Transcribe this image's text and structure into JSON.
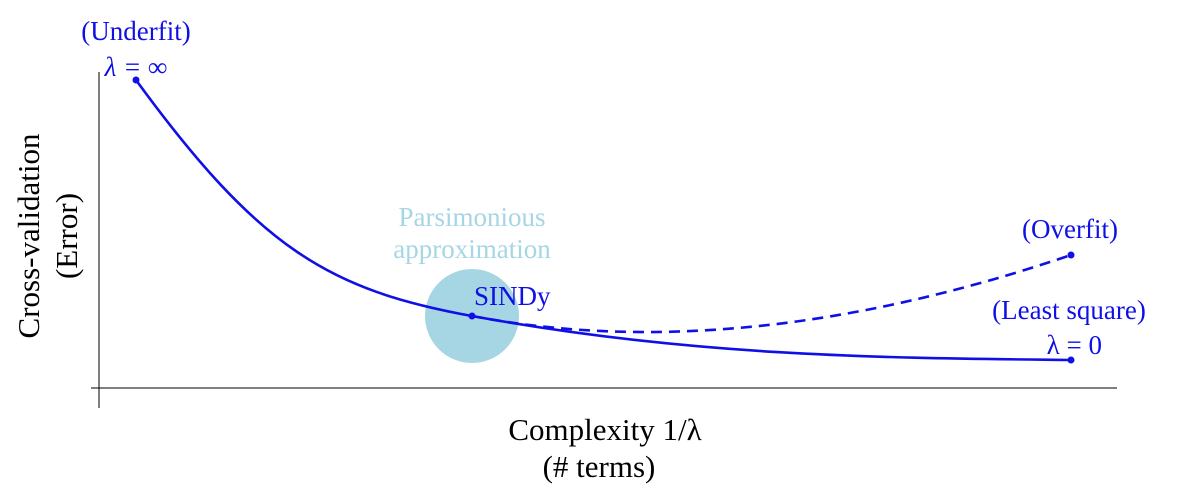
{
  "axes": {
    "x_label_line1": "Complexity 1/λ",
    "x_label_line2": "(# terms)",
    "y_label_line1": "Cross-validation",
    "y_label_line2": "(Error)"
  },
  "annotations": {
    "underfit": "(Underfit)",
    "lambda_inf": "λ = ∞",
    "parsimonious_line1": "Parsimonious",
    "parsimonious_line2": "approximation",
    "sindy": "SINDy",
    "overfit": "(Overfit)",
    "least_square": "(Least square)",
    "lambda_zero": "λ = 0"
  },
  "colors": {
    "curve": "#1010e6",
    "highlight": "#a6d6e4",
    "axis": "#000000"
  },
  "curves": {
    "main": "solid",
    "overfit_branch": "dashed"
  }
}
